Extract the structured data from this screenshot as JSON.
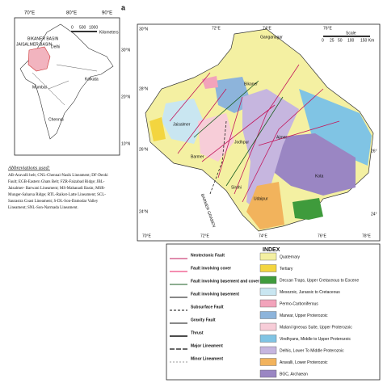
{
  "panel_label": "a",
  "inset": {
    "lon_labels": [
      "70°E",
      "80°E",
      "90°E"
    ],
    "lat_labels": [
      "30°N",
      "20°N",
      "10°N"
    ],
    "places": [
      "JAISALMER BASIN",
      "BIKANER BASIN",
      "Delhi",
      "Mumbai",
      "Chennai",
      "Kolkata"
    ],
    "scale": [
      "0",
      "500",
      "1000",
      "Kilometers"
    ]
  },
  "abbreviations": {
    "title": "Abbreviations used:",
    "lines": [
      "AB-Aravalli belt; CNL-Chennai-Nasik Lineament; DF-Deoki",
      "Fault; EGB-Eastern Ghats Belt; FZR-Faizabad Ridge; JBL-",
      "Jaisalmer- Barwani Lineament; MS-Mahanadi Basin; MSR-",
      "Munger-Saharsa Ridge; RTL-Raikot-Latte Lineament; SCL-",
      "Saurastra Coast Lineament; S-DL-Son-Damodar Valley",
      "Lineament; SNL-Son-Narmada Lineament."
    ]
  },
  "main_map": {
    "top_labels": [
      "72°E",
      "74°E",
      "76°E"
    ],
    "left_labels": [
      "30°N",
      "28°N",
      "26°N",
      "24°N"
    ],
    "bottom_labels": [
      "70°E",
      "72°E",
      "74°E",
      "76°E",
      "78°E"
    ],
    "right_labels": [
      "26°",
      "24°"
    ],
    "places": [
      "Ganganagar",
      "Bikaner",
      "Jaisalmer",
      "Barmer",
      "Jodhpur",
      "Ajmer",
      "Kota",
      "Udaipur",
      "Sirohi"
    ],
    "side_label": "BARMER GRABEN",
    "scale": [
      "0",
      "25",
      "50",
      "100",
      "150 Km"
    ],
    "scale_title": "Scale"
  },
  "index": {
    "title": "INDEX",
    "structures": [
      "Neotectonic Fault",
      "Fault involving cover",
      "Fault involving basement and cover",
      "Fault involving basement",
      "Subsurface Fault",
      "Gravity Fault",
      "Thrust",
      "Major Lineament",
      "Minor Lineament"
    ],
    "units": [
      {
        "name": "Quaternary",
        "color": "#f4f0a2"
      },
      {
        "name": "Tertiary",
        "color": "#f3d53f"
      },
      {
        "name": "Deccan Traps, Upper Cretaceous to Eocene",
        "color": "#3f9b3c"
      },
      {
        "name": "Mesozoic, Jurassic to Cretaceous",
        "color": "#c9e6f1"
      },
      {
        "name": "Permo-Carboniferous",
        "color": "#f2a3bb"
      },
      {
        "name": "Marwar, Upper Proterozoic",
        "color": "#8db4db"
      },
      {
        "name": "Malani Igneous Suite, Upper Proterozoic",
        "color": "#f7cdd8"
      },
      {
        "name": "Vindhyans, Middle to Upper Proterozoic",
        "color": "#80c4e4"
      },
      {
        "name": "Delhis, Lower To Middle Proterozoic",
        "color": "#c6b6df"
      },
      {
        "name": "Aravalli, Lower Proterozoic",
        "color": "#f2b35c"
      },
      {
        "name": "BGC, Archaean",
        "color": "#9a86c3"
      }
    ]
  }
}
